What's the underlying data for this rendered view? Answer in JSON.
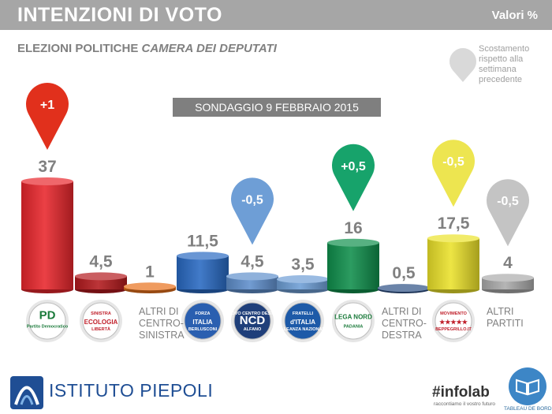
{
  "header": {
    "title": "INTENZIONI DI VOTO",
    "unit_label": "Valori %"
  },
  "subtitle": {
    "prefix": "ELEZIONI POLITICHE",
    "emphasis": "CAMERA DEI DEPUTATI"
  },
  "legend": {
    "text": "Scostamento rispetto alla settimana precedente"
  },
  "chart_data": {
    "type": "bar",
    "title": "SONDAGGIO 9 FEBBRAIO 2015",
    "categories": [
      "Partito Democratico",
      "Sinistra Ecologia Libertà",
      "ALTRI DI CENTRO-SINISTRA",
      "Forza Italia",
      "NCD Alfano",
      "Fratelli d'Italia",
      "Lega Nord",
      "ALTRI DI CENTRO-DESTRA",
      "MoVimento 5 Stelle",
      "ALTRI PARTITI"
    ],
    "values": [
      37,
      4.5,
      1,
      11.5,
      4.5,
      3.5,
      16,
      0.5,
      17.5,
      4
    ],
    "value_labels": [
      "37",
      "4,5",
      "1",
      "11,5",
      "4,5",
      "3,5",
      "16",
      "0,5",
      "17,5",
      "4"
    ],
    "changes": [
      {
        "index": 0,
        "label": "+1",
        "color": "#e1301c"
      },
      {
        "index": 4,
        "label": "-0,5",
        "color": "#6e9ed6"
      },
      {
        "index": 6,
        "label": "+0,5",
        "color": "#17a36b"
      },
      {
        "index": 8,
        "label": "-0,5",
        "color": "#ede550"
      },
      {
        "index": 9,
        "label": "-0,5",
        "color": "#c4c4c4"
      }
    ],
    "colors": [
      "#e8262c",
      "#b3191d",
      "#e8701a",
      "#2869c2",
      "#5f8fcc",
      "#6e9ed6",
      "#0f8f4c",
      "#2b4f84",
      "#ebe22a",
      "#ababab"
    ],
    "text_categories": [
      {
        "index": 2,
        "text": "ALTRI DI\nCENTRO-\nSINISTRA"
      },
      {
        "index": 7,
        "text": "ALTRI DI\nCENTRO-\nDESTRA"
      },
      {
        "index": 9,
        "text": "ALTRI\nPARTITI"
      }
    ],
    "logos": [
      {
        "index": 0,
        "name": "pd-logo",
        "bg": "#ffffff",
        "lines": [
          "PD",
          "Partito Democratico"
        ],
        "text_color": "#1a7a3a"
      },
      {
        "index": 1,
        "name": "sel-logo",
        "bg": "#ffffff",
        "lines": [
          "SINISTRA",
          "ECOLOGIA",
          "LIBERTÀ"
        ],
        "text_color": "#c0202b"
      },
      {
        "index": 3,
        "name": "forza-italia-logo",
        "bg": "#2a5fb0",
        "lines": [
          "FORZA",
          "ITALIA",
          "BERLUSCONI"
        ],
        "text_color": "#ffffff"
      },
      {
        "index": 4,
        "name": "ncd-logo",
        "bg": "#1f3f7a",
        "lines": [
          "NUOVO CENTRO DESTRA",
          "NCD",
          "ALFANO"
        ],
        "text_color": "#ffffff"
      },
      {
        "index": 5,
        "name": "fdi-logo",
        "bg": "#1d5aa8",
        "lines": [
          "FRATELLI",
          "d'ITALIA",
          "ALLEANZA NAZIONALE"
        ],
        "text_color": "#ffffff"
      },
      {
        "index": 6,
        "name": "lega-nord-logo",
        "bg": "#ffffff",
        "lines": [
          "LEGA NORD",
          "PADANIA"
        ],
        "text_color": "#1a7a3a"
      },
      {
        "index": 8,
        "name": "m5s-logo",
        "bg": "#ffffff",
        "lines": [
          "MOVIMENTO",
          "★★★★★",
          "BEPPEGRILLO.IT"
        ],
        "text_color": "#c0202b"
      }
    ]
  },
  "footer": {
    "brand": "ISTITUTO PIEPOLI",
    "infolab": "#infolab",
    "infolab_tagline": "raccontiamo il vostro futuro",
    "tableau": "TABLEAU DE BORD"
  }
}
